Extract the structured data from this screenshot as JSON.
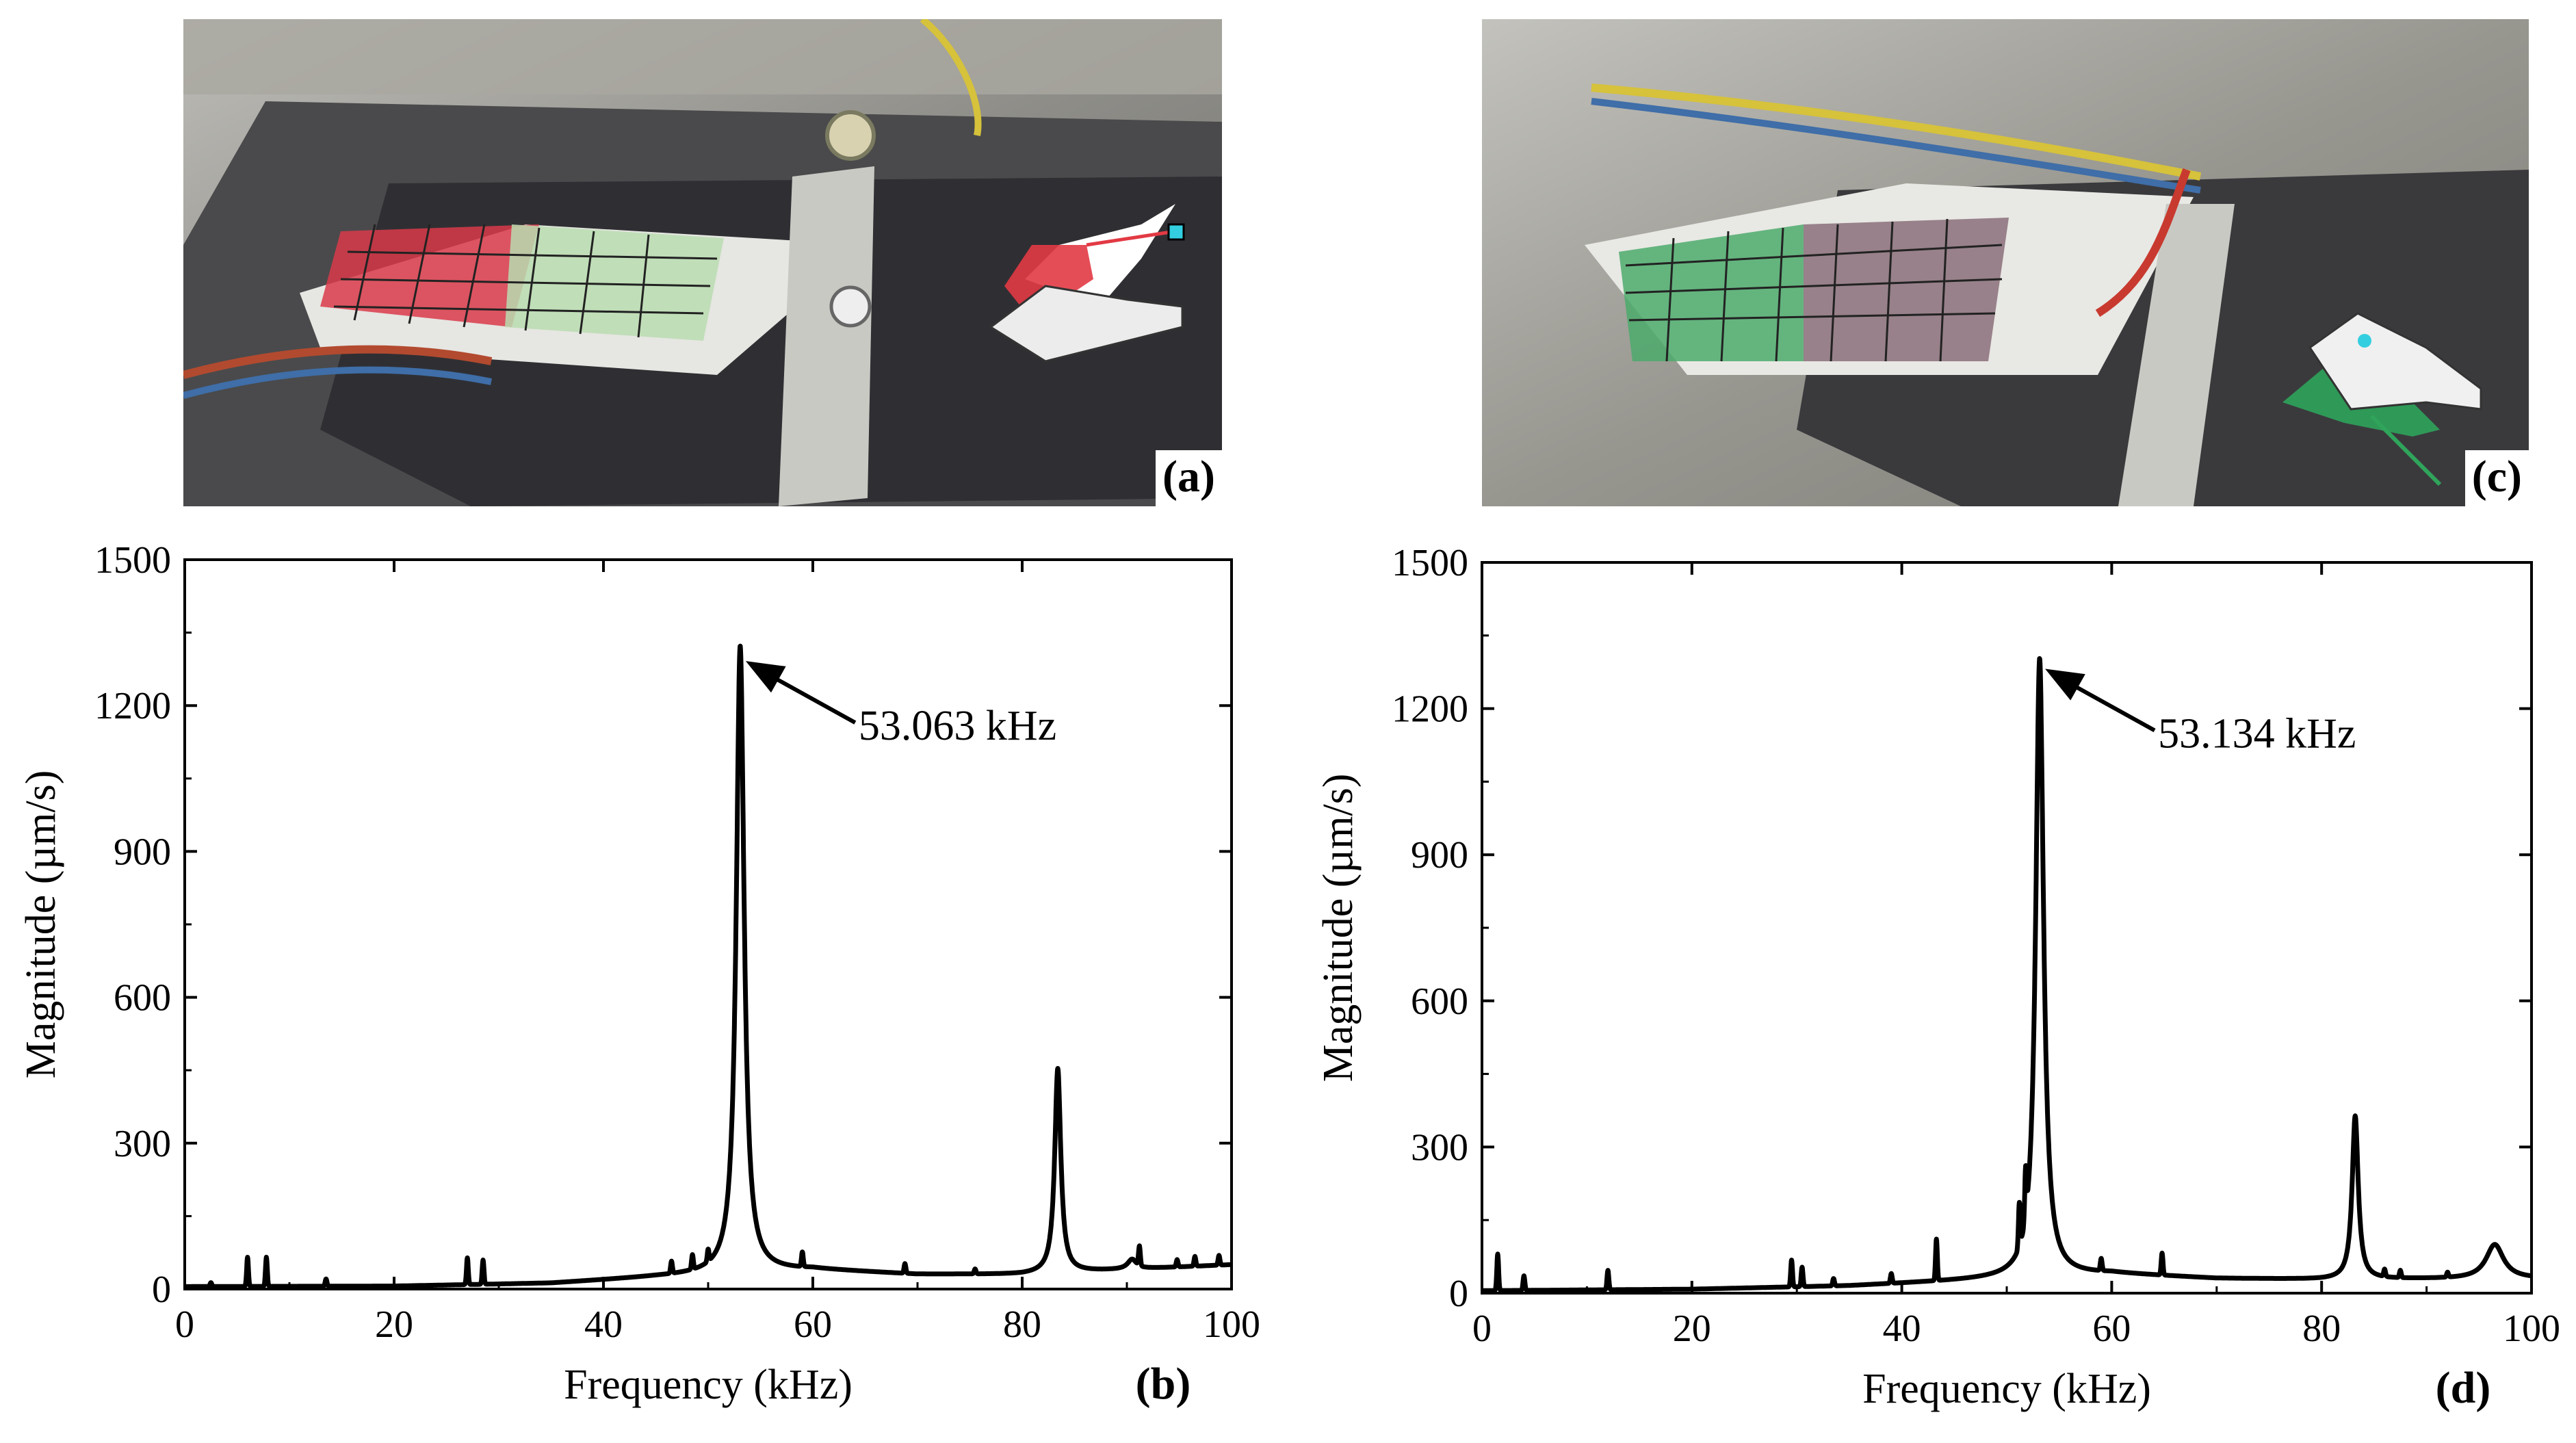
{
  "photos": [
    {
      "panel_label": "(a)",
      "mesh_color": "#d93a4a",
      "accent_color": "#33cfe0"
    },
    {
      "panel_label": "(c)",
      "mesh_color": "#3aa86a",
      "accent_color": "#33cfe0"
    }
  ],
  "chart_data": [
    {
      "type": "line",
      "panel_label": "(b)",
      "title": "",
      "xlabel": "Frequency (kHz)",
      "ylabel": "Magnitude (µm/s)",
      "xlim": [
        0,
        100
      ],
      "ylim": [
        0,
        1500
      ],
      "xticks": [
        0,
        20,
        40,
        60,
        80,
        100
      ],
      "yticks": [
        0,
        300,
        600,
        900,
        1200,
        1500
      ],
      "grid": false,
      "annotation": {
        "text": "53.063 kHz",
        "x": 53.063,
        "y": 1300
      },
      "series": [
        {
          "peaks": [
            [
              53.063,
              1290,
              0.45
            ],
            [
              83.4,
              420,
              0.35
            ],
            [
              90.5,
              20,
              0.5
            ]
          ],
          "spikes": [
            [
              2.5,
              8
            ],
            [
              6,
              60
            ],
            [
              7.8,
              60
            ],
            [
              13.5,
              15
            ],
            [
              27,
              55
            ],
            [
              28.5,
              50
            ],
            [
              46.5,
              25
            ],
            [
              48.5,
              30
            ],
            [
              50,
              25
            ],
            [
              59,
              30
            ],
            [
              68.8,
              20
            ],
            [
              75.5,
              10
            ],
            [
              91.2,
              40
            ],
            [
              94.8,
              15
            ],
            [
              96.5,
              20
            ],
            [
              98.8,
              20
            ]
          ],
          "baseline": [
            [
              0,
              5
            ],
            [
              20,
              6
            ],
            [
              35,
              12
            ],
            [
              45,
              25
            ],
            [
              60,
              40
            ],
            [
              70,
              30
            ],
            [
              80,
              30
            ],
            [
              100,
              50
            ]
          ]
        }
      ]
    },
    {
      "type": "line",
      "panel_label": "(d)",
      "title": "",
      "xlabel": "Frequency (kHz)",
      "ylabel": "Magnitude (µm/s)",
      "xlim": [
        0,
        100
      ],
      "ylim": [
        0,
        1500
      ],
      "xticks": [
        0,
        20,
        40,
        60,
        80,
        100
      ],
      "yticks": [
        0,
        300,
        600,
        900,
        1200,
        1500
      ],
      "grid": false,
      "annotation": {
        "text": "53.134 kHz",
        "x": 53.134,
        "y": 1290
      },
      "series": [
        {
          "peaks": [
            [
              53.134,
              1270,
              0.45
            ],
            [
              83.2,
              335,
              0.35
            ],
            [
              96.5,
              70,
              1.0
            ]
          ],
          "spikes": [
            [
              1.5,
              75
            ],
            [
              4,
              30
            ],
            [
              12,
              40
            ],
            [
              29.5,
              55
            ],
            [
              30.5,
              40
            ],
            [
              33.5,
              15
            ],
            [
              39,
              20
            ],
            [
              43.3,
              85
            ],
            [
              51.2,
              90
            ],
            [
              51.8,
              100
            ],
            [
              59,
              25
            ],
            [
              64.8,
              45
            ],
            [
              86,
              15
            ],
            [
              87.5,
              15
            ],
            [
              92,
              10
            ]
          ],
          "baseline": [
            [
              0,
              5
            ],
            [
              20,
              8
            ],
            [
              35,
              15
            ],
            [
              45,
              25
            ],
            [
              60,
              40
            ],
            [
              70,
              30
            ],
            [
              80,
              28
            ],
            [
              100,
              30
            ]
          ]
        }
      ]
    }
  ]
}
